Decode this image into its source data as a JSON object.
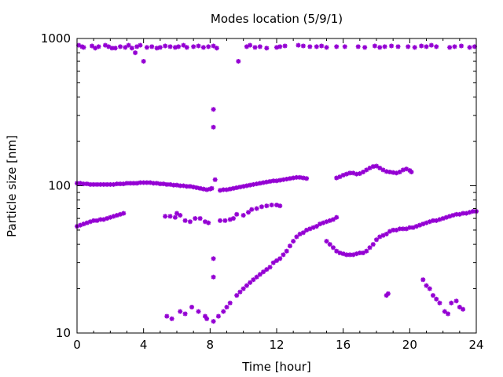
{
  "chart_data": {
    "type": "scatter",
    "title": "Modes location (5/9/1)",
    "xlabel": "Time [hour]",
    "ylabel": "Particle size [nm]",
    "xlim": [
      0,
      24
    ],
    "ylim": [
      10,
      1000
    ],
    "yscale": "log",
    "xticks": [
      0,
      4,
      8,
      12,
      16,
      20,
      24
    ],
    "yticks": [
      10,
      100,
      1000
    ],
    "grid": false,
    "marker_color": "#9400d3",
    "series": [
      {
        "mode": "top",
        "points": [
          [
            0.1,
            900
          ],
          [
            0.3,
            880
          ],
          [
            0.4,
            870
          ],
          [
            0.9,
            890
          ],
          [
            1.1,
            860
          ],
          [
            1.3,
            880
          ],
          [
            1.7,
            900
          ],
          [
            1.9,
            880
          ],
          [
            2.1,
            860
          ],
          [
            2.3,
            860
          ],
          [
            2.6,
            880
          ],
          [
            2.9,
            870
          ],
          [
            3.1,
            900
          ],
          [
            3.3,
            860
          ],
          [
            3.5,
            800
          ],
          [
            3.6,
            880
          ],
          [
            3.8,
            900
          ],
          [
            4.0,
            700
          ],
          [
            4.2,
            870
          ],
          [
            4.5,
            880
          ],
          [
            4.8,
            860
          ],
          [
            5.0,
            870
          ],
          [
            5.3,
            890
          ],
          [
            5.6,
            880
          ],
          [
            5.9,
            870
          ],
          [
            6.1,
            880
          ],
          [
            6.4,
            900
          ],
          [
            6.6,
            870
          ],
          [
            7.0,
            880
          ],
          [
            7.3,
            890
          ],
          [
            7.6,
            870
          ],
          [
            7.9,
            880
          ],
          [
            8.2,
            890
          ],
          [
            8.4,
            860
          ],
          [
            9.7,
            700
          ],
          [
            10.2,
            880
          ],
          [
            10.4,
            900
          ],
          [
            10.7,
            870
          ],
          [
            11.0,
            880
          ],
          [
            11.4,
            860
          ],
          [
            12.0,
            870
          ],
          [
            12.2,
            880
          ],
          [
            12.5,
            890
          ],
          [
            13.3,
            900
          ],
          [
            13.6,
            890
          ],
          [
            14.0,
            880
          ],
          [
            14.4,
            880
          ],
          [
            14.7,
            890
          ],
          [
            15.0,
            870
          ],
          [
            15.6,
            880
          ],
          [
            16.1,
            880
          ],
          [
            16.9,
            880
          ],
          [
            17.3,
            870
          ],
          [
            17.9,
            890
          ],
          [
            18.2,
            870
          ],
          [
            18.5,
            880
          ],
          [
            18.9,
            890
          ],
          [
            19.3,
            880
          ],
          [
            19.9,
            880
          ],
          [
            20.3,
            870
          ],
          [
            20.7,
            890
          ],
          [
            21.0,
            880
          ],
          [
            21.3,
            900
          ],
          [
            21.6,
            880
          ],
          [
            22.4,
            870
          ],
          [
            22.7,
            880
          ],
          [
            23.1,
            890
          ],
          [
            23.6,
            870
          ],
          [
            23.9,
            880
          ]
        ]
      },
      {
        "mode": "isolated",
        "points": [
          [
            8.2,
            330
          ],
          [
            8.2,
            250
          ],
          [
            8.3,
            110
          ],
          [
            8.2,
            32
          ],
          [
            8.2,
            24
          ],
          [
            8.2,
            12
          ]
        ]
      },
      {
        "mode": "upper-band",
        "points": [
          [
            0.0,
            104
          ],
          [
            0.2,
            104
          ],
          [
            0.4,
            103
          ],
          [
            0.6,
            103
          ],
          [
            0.8,
            102
          ],
          [
            1.0,
            102
          ],
          [
            1.2,
            102
          ],
          [
            1.4,
            102
          ],
          [
            1.6,
            102
          ],
          [
            1.8,
            102
          ],
          [
            2.0,
            102
          ],
          [
            2.2,
            102
          ],
          [
            2.4,
            103
          ],
          [
            2.6,
            103
          ],
          [
            2.8,
            103
          ],
          [
            3.0,
            104
          ],
          [
            3.2,
            104
          ],
          [
            3.4,
            104
          ],
          [
            3.6,
            104
          ],
          [
            3.8,
            105
          ],
          [
            4.0,
            105
          ],
          [
            4.2,
            105
          ],
          [
            4.4,
            105
          ],
          [
            4.6,
            104
          ],
          [
            4.8,
            104
          ],
          [
            5.0,
            103
          ],
          [
            5.2,
            103
          ],
          [
            5.4,
            102
          ],
          [
            5.6,
            102
          ],
          [
            5.8,
            101
          ],
          [
            6.0,
            101
          ],
          [
            6.2,
            100
          ],
          [
            6.4,
            100
          ],
          [
            6.6,
            99
          ],
          [
            6.8,
            99
          ],
          [
            7.0,
            98
          ],
          [
            7.2,
            97
          ],
          [
            7.4,
            96
          ],
          [
            7.6,
            95
          ],
          [
            7.8,
            94
          ],
          [
            8.0,
            95
          ],
          [
            8.1,
            96
          ],
          [
            8.6,
            93
          ],
          [
            8.8,
            94
          ],
          [
            9.0,
            94
          ],
          [
            9.2,
            95
          ],
          [
            9.4,
            96
          ],
          [
            9.6,
            97
          ],
          [
            9.8,
            98
          ],
          [
            10.0,
            99
          ],
          [
            10.2,
            100
          ],
          [
            10.4,
            101
          ],
          [
            10.6,
            102
          ],
          [
            10.8,
            103
          ],
          [
            11.0,
            104
          ],
          [
            11.2,
            105
          ],
          [
            11.4,
            106
          ],
          [
            11.6,
            107
          ],
          [
            11.8,
            108
          ],
          [
            12.0,
            108
          ],
          [
            12.2,
            109
          ],
          [
            12.4,
            110
          ],
          [
            12.6,
            111
          ],
          [
            12.8,
            112
          ],
          [
            13.0,
            113
          ],
          [
            13.2,
            114
          ],
          [
            13.4,
            114
          ],
          [
            13.6,
            113
          ],
          [
            13.8,
            112
          ],
          [
            15.6,
            113
          ],
          [
            15.8,
            115
          ],
          [
            16.0,
            118
          ],
          [
            16.2,
            120
          ],
          [
            16.4,
            122
          ],
          [
            16.6,
            122
          ],
          [
            16.8,
            120
          ],
          [
            17.0,
            121
          ],
          [
            17.2,
            124
          ],
          [
            17.4,
            128
          ],
          [
            17.6,
            132
          ],
          [
            17.8,
            135
          ],
          [
            18.0,
            136
          ],
          [
            18.2,
            132
          ],
          [
            18.4,
            128
          ],
          [
            18.6,
            125
          ],
          [
            18.8,
            124
          ],
          [
            19.0,
            123
          ],
          [
            19.2,
            122
          ],
          [
            19.4,
            124
          ],
          [
            19.6,
            128
          ],
          [
            19.8,
            130
          ],
          [
            20.0,
            127
          ],
          [
            20.1,
            124
          ]
        ]
      },
      {
        "mode": "mid-band",
        "points": [
          [
            0.0,
            53
          ],
          [
            0.2,
            54
          ],
          [
            0.4,
            55
          ],
          [
            0.6,
            56
          ],
          [
            0.8,
            57
          ],
          [
            1.0,
            58
          ],
          [
            1.2,
            58
          ],
          [
            1.4,
            59
          ],
          [
            1.6,
            59
          ],
          [
            1.8,
            60
          ],
          [
            2.0,
            61
          ],
          [
            2.2,
            62
          ],
          [
            2.4,
            63
          ],
          [
            2.6,
            64
          ],
          [
            2.8,
            65
          ],
          [
            5.3,
            62
          ],
          [
            5.6,
            62
          ],
          [
            5.9,
            61
          ],
          [
            6.0,
            65
          ],
          [
            6.2,
            63
          ],
          [
            6.5,
            58
          ],
          [
            6.8,
            57
          ],
          [
            7.1,
            60
          ],
          [
            7.4,
            60
          ],
          [
            7.7,
            57
          ],
          [
            7.9,
            56
          ],
          [
            8.6,
            58
          ],
          [
            8.9,
            58
          ],
          [
            9.2,
            59
          ],
          [
            9.4,
            60
          ],
          [
            9.6,
            64
          ],
          [
            10.0,
            63
          ],
          [
            10.3,
            66
          ],
          [
            10.5,
            69
          ],
          [
            10.8,
            70
          ],
          [
            11.1,
            72
          ],
          [
            11.4,
            73
          ],
          [
            11.7,
            74
          ],
          [
            12.0,
            74
          ],
          [
            12.2,
            73
          ]
        ]
      },
      {
        "mode": "growing-band",
        "points": [
          [
            5.4,
            13
          ],
          [
            5.7,
            12.5
          ],
          [
            6.2,
            14
          ],
          [
            6.5,
            13.5
          ],
          [
            6.9,
            15
          ],
          [
            7.3,
            14
          ],
          [
            7.7,
            13
          ],
          [
            7.8,
            12.5
          ],
          [
            8.5,
            13
          ],
          [
            8.8,
            14
          ],
          [
            9.0,
            15
          ],
          [
            9.2,
            16
          ],
          [
            9.6,
            18
          ],
          [
            9.8,
            19
          ],
          [
            10.0,
            20
          ],
          [
            10.2,
            21
          ],
          [
            10.4,
            22
          ],
          [
            10.6,
            23
          ],
          [
            10.8,
            24
          ],
          [
            11.0,
            25
          ],
          [
            11.2,
            26
          ],
          [
            11.4,
            27
          ],
          [
            11.6,
            28
          ],
          [
            11.8,
            30
          ],
          [
            12.0,
            31
          ],
          [
            12.2,
            32
          ],
          [
            12.4,
            34
          ],
          [
            12.6,
            36
          ],
          [
            12.8,
            39
          ],
          [
            13.0,
            42
          ],
          [
            13.2,
            45
          ],
          [
            13.4,
            47
          ],
          [
            13.6,
            48
          ],
          [
            13.8,
            50
          ],
          [
            14.0,
            51
          ],
          [
            14.2,
            52
          ],
          [
            14.4,
            53
          ],
          [
            14.6,
            55
          ],
          [
            14.8,
            56
          ],
          [
            15.0,
            57
          ],
          [
            15.2,
            58
          ],
          [
            15.4,
            59
          ],
          [
            15.6,
            61
          ],
          [
            15.0,
            42
          ],
          [
            15.2,
            40
          ],
          [
            15.4,
            38
          ],
          [
            15.6,
            36
          ],
          [
            15.8,
            35
          ],
          [
            16.0,
            34.5
          ],
          [
            16.2,
            34
          ],
          [
            16.4,
            34
          ],
          [
            16.6,
            34
          ],
          [
            16.8,
            34.5
          ],
          [
            17.0,
            35
          ],
          [
            17.2,
            35
          ],
          [
            17.4,
            36
          ],
          [
            17.6,
            38
          ],
          [
            17.8,
            40
          ],
          [
            18.0,
            43
          ],
          [
            18.2,
            45
          ],
          [
            18.4,
            46
          ],
          [
            18.6,
            47
          ],
          [
            18.8,
            49
          ],
          [
            19.0,
            50
          ],
          [
            19.2,
            50
          ],
          [
            19.4,
            51
          ],
          [
            19.6,
            51
          ],
          [
            19.8,
            51
          ],
          [
            20.0,
            52
          ],
          [
            20.2,
            52
          ],
          [
            20.4,
            53
          ],
          [
            20.6,
            54
          ],
          [
            20.8,
            55
          ],
          [
            21.0,
            56
          ],
          [
            21.2,
            57
          ],
          [
            21.4,
            58
          ],
          [
            21.6,
            58
          ],
          [
            21.8,
            59
          ],
          [
            22.0,
            60
          ],
          [
            22.2,
            61
          ],
          [
            22.4,
            62
          ],
          [
            22.6,
            63
          ],
          [
            22.8,
            64
          ],
          [
            23.0,
            64
          ],
          [
            23.2,
            65
          ],
          [
            23.4,
            65
          ],
          [
            23.6,
            66
          ],
          [
            23.8,
            67
          ],
          [
            24.0,
            67
          ]
        ]
      },
      {
        "mode": "small-tail",
        "points": [
          [
            18.6,
            18
          ],
          [
            18.7,
            18.5
          ],
          [
            20.8,
            23
          ],
          [
            21.0,
            21
          ],
          [
            21.2,
            20
          ],
          [
            21.4,
            18
          ],
          [
            21.6,
            17
          ],
          [
            21.8,
            16
          ],
          [
            22.1,
            14
          ],
          [
            22.3,
            13.5
          ],
          [
            22.5,
            16
          ],
          [
            22.8,
            16.5
          ],
          [
            23.0,
            15
          ],
          [
            23.2,
            14.5
          ]
        ]
      }
    ]
  }
}
